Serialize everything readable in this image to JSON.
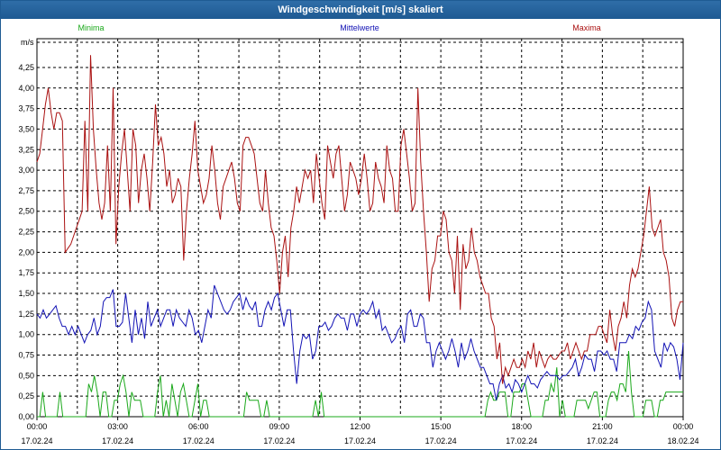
{
  "window": {
    "title": "Windgeschwindigkeit [m/s] skaliert"
  },
  "chart_data": {
    "type": "line",
    "title": "Windgeschwindigkeit [m/s] skaliert",
    "ylabel": "m/s",
    "xlabel": "",
    "ylim": [
      0,
      4.5
    ],
    "xlim_hours": [
      0,
      24
    ],
    "grid": true,
    "y_ticks": [
      "0,00",
      "0,25",
      "0,50",
      "0,75",
      "1,00",
      "1,25",
      "1,50",
      "1,75",
      "2,00",
      "2,25",
      "2,50",
      "2,75",
      "3,00",
      "3,25",
      "3,50",
      "3,75",
      "4,00",
      "4,25"
    ],
    "x_ticks": [
      {
        "time": "00:00",
        "date": "17.02.24"
      },
      {
        "time": "03:00",
        "date": "17.02.24"
      },
      {
        "time": "06:00",
        "date": "17.02.24"
      },
      {
        "time": "09:00",
        "date": "17.02.24"
      },
      {
        "time": "12:00",
        "date": "17.02.24"
      },
      {
        "time": "15:00",
        "date": "17.02.24"
      },
      {
        "time": "18:00",
        "date": "17.02.24"
      },
      {
        "time": "21:00",
        "date": "17.02.24"
      },
      {
        "time": "00:00",
        "date": "18.02.24"
      }
    ],
    "series": [
      {
        "name": "Minima",
        "color": "#1aa81a",
        "values": [
          0,
          0,
          0.3,
          0,
          0,
          0,
          0,
          0,
          0.3,
          0,
          0,
          0,
          0,
          0,
          0,
          0,
          0,
          0,
          0.4,
          0.3,
          0.5,
          0.3,
          0,
          0.3,
          0.3,
          0,
          0,
          0.2,
          0.2,
          0.4,
          0.5,
          0.3,
          0,
          0.3,
          0.2,
          0.2,
          0.2,
          0,
          0,
          0,
          0,
          0,
          0.3,
          0.5,
          0,
          0.2,
          0,
          0.4,
          0.2,
          0,
          0.3,
          0.4,
          0.2,
          0,
          0,
          0.2,
          0.4,
          0,
          0.2,
          0.2,
          0,
          0,
          0,
          0,
          0,
          0,
          0,
          0,
          0,
          0,
          0,
          0,
          0,
          0.3,
          0.2,
          0.2,
          0.2,
          0.2,
          0,
          0,
          0.2,
          0,
          0,
          0,
          0,
          0,
          0,
          0,
          0,
          0,
          0,
          0,
          0,
          0,
          0,
          0,
          0,
          0.2,
          0,
          0.3,
          0,
          0,
          0,
          0,
          0,
          0,
          0,
          0,
          0,
          0,
          0,
          0,
          0,
          0,
          0,
          0,
          0,
          0,
          0,
          0,
          0,
          0,
          0,
          0,
          0,
          0,
          0,
          0,
          0,
          0,
          0,
          0,
          0,
          0,
          0,
          0,
          0,
          0,
          0,
          0,
          0,
          0,
          0,
          0,
          0,
          0,
          0,
          0,
          0,
          0,
          0,
          0,
          0,
          0,
          0,
          0,
          0,
          0.2,
          0.3,
          0.2,
          0.2,
          0.3,
          0.3,
          0.3,
          0,
          0,
          0.3,
          0.3,
          0.3,
          0.4,
          0.4,
          0.2,
          0,
          0,
          0,
          0,
          0,
          0.2,
          0.2,
          0.4,
          0.3,
          0.6,
          0,
          0.2,
          0,
          0,
          0,
          0,
          0.2,
          0.2,
          0.2,
          0.2,
          0.1,
          0.2,
          0.3,
          0.3,
          0,
          0,
          0,
          0.2,
          0.3,
          0.3,
          0.2,
          0.4,
          0.4,
          0.3,
          0.8,
          0.3,
          0,
          0,
          0,
          0,
          0.2,
          0.2,
          0.2,
          0,
          0,
          0.2,
          0.2,
          0.3,
          0.3,
          0.3,
          0.3,
          0.3,
          0.3,
          0.3
        ]
      },
      {
        "name": "Mittelwerte",
        "color": "#1313b5",
        "values": [
          1.25,
          1.2,
          1.3,
          1.2,
          1.25,
          1.3,
          1.35,
          1.2,
          1.1,
          1.1,
          1.0,
          1.1,
          1.0,
          1.1,
          1.0,
          0.9,
          1.0,
          1.05,
          1.2,
          1.0,
          1.1,
          1.4,
          1.45,
          1.45,
          1.55,
          1.1,
          1.1,
          1.15,
          1.5,
          1.2,
          0.9,
          1.3,
          1.0,
          1.2,
          0.95,
          1.4,
          1.1,
          1.2,
          1.3,
          1.1,
          1.2,
          1.3,
          1.3,
          1.1,
          1.3,
          1.2,
          1.15,
          1.1,
          1.3,
          1.2,
          1.0,
          1.05,
          0.9,
          1.1,
          1.3,
          1.2,
          1.6,
          1.5,
          1.4,
          1.3,
          1.25,
          1.3,
          1.4,
          1.45,
          1.5,
          1.3,
          1.45,
          1.35,
          1.3,
          1.4,
          1.1,
          1.1,
          1.3,
          1.4,
          1.3,
          1.45,
          1.5,
          1.3,
          1.1,
          1.3,
          1.3,
          0.8,
          0.4,
          0.8,
          1.0,
          0.95,
          1.0,
          0.7,
          0.8,
          1.1,
          1.1,
          1.15,
          1.05,
          1.1,
          1.2,
          1.25,
          1.2,
          1.2,
          1.05,
          1.25,
          1.25,
          1.1,
          1.25,
          1.3,
          1.25,
          1.3,
          1.4,
          1.2,
          1.3,
          1.05,
          1.1,
          1.0,
          0.9,
          0.95,
          1.05,
          1.1,
          0.9,
          1.25,
          1.3,
          1.1,
          1.1,
          1.25,
          1.2,
          0.9,
          0.9,
          0.6,
          0.8,
          0.9,
          0.8,
          0.7,
          0.8,
          0.95,
          0.8,
          0.6,
          0.9,
          0.7,
          0.8,
          0.95,
          0.8,
          0.7,
          0.6,
          0.6,
          0.5,
          0.4,
          0.4,
          0.2,
          0.4,
          0.5,
          0.35,
          0.4,
          0.3,
          0.45,
          0.4,
          0.3,
          0.4,
          0.5,
          0.4,
          0.4,
          0.35,
          0.45,
          0.5,
          0.55,
          0.5,
          0.5,
          0.5,
          0.45,
          0.5,
          0.5,
          0.55,
          0.6,
          0.7,
          0.5,
          0.6,
          0.75,
          0.7,
          0.7,
          0.55,
          0.8,
          0.8,
          0.75,
          0.8,
          0.7,
          0.7,
          0.55,
          0.9,
          0.9,
          0.9,
          1.0,
          0.95,
          1.1,
          1.05,
          1.15,
          1.2,
          1.4,
          1.3,
          0.8,
          0.7,
          0.6,
          0.9,
          0.8,
          0.9,
          0.85,
          0.7,
          0.45,
          0.9
        ]
      },
      {
        "name": "Maxima",
        "color": "#aa1111",
        "values": [
          3.1,
          3.2,
          3.5,
          3.8,
          4.0,
          3.7,
          3.5,
          3.7,
          3.7,
          3.6,
          2.0,
          2.05,
          2.1,
          2.2,
          2.3,
          2.4,
          2.5,
          3.6,
          2.5,
          4.4,
          3.5,
          3.0,
          2.6,
          2.4,
          2.6,
          3.3,
          2.5,
          4.0,
          2.1,
          2.8,
          3.2,
          3.5,
          3.0,
          2.5,
          3.5,
          3.3,
          2.6,
          3.0,
          3.2,
          2.9,
          2.5,
          3.1,
          3.8,
          3.3,
          3.4,
          3.2,
          2.8,
          3.0,
          2.6,
          2.7,
          2.9,
          2.8,
          1.9,
          2.5,
          2.9,
          3.2,
          3.6,
          3.0,
          2.8,
          2.6,
          2.7,
          2.9,
          3.3,
          3.0,
          2.6,
          2.4,
          2.8,
          2.9,
          3.0,
          3.1,
          2.9,
          2.6,
          2.5,
          3.3,
          3.4,
          3.4,
          3.3,
          3.2,
          2.9,
          2.6,
          2.5,
          3.0,
          2.6,
          2.3,
          2.2,
          1.9,
          1.5,
          2.0,
          2.2,
          1.7,
          2.3,
          2.5,
          2.8,
          2.6,
          2.8,
          3.0,
          2.9,
          3.0,
          2.6,
          3.2,
          2.9,
          2.6,
          2.4,
          3.3,
          3.1,
          2.9,
          3.2,
          3.3,
          2.9,
          2.5,
          2.7,
          3.1,
          3.0,
          2.9,
          2.7,
          2.9,
          3.2,
          2.9,
          2.5,
          2.6,
          3.1,
          2.9,
          2.8,
          2.6,
          3.3,
          3.0,
          2.9,
          2.5,
          2.5,
          3.3,
          3.5,
          3.2,
          2.9,
          2.5,
          2.6,
          4.0,
          3.1,
          2.5,
          2.0,
          1.4,
          1.8,
          1.9,
          2.2,
          2.2,
          2.5,
          2.4,
          2.0,
          1.9,
          1.5,
          2.2,
          1.3,
          2.1,
          1.8,
          1.9,
          2.3,
          2.0,
          1.9,
          1.7,
          1.6,
          1.5,
          1.5,
          1.2,
          1.1,
          0.7,
          0.9,
          0.4,
          0.6,
          0.5,
          0.6,
          0.7,
          0.6,
          0.6,
          0.7,
          0.6,
          0.8,
          0.7,
          0.9,
          0.6,
          0.8,
          0.7,
          0.6,
          0.7,
          0.75,
          0.7,
          0.7,
          0.75,
          0.8,
          0.8,
          0.9,
          0.7,
          0.8,
          0.9,
          0.8,
          0.7,
          0.8,
          0.8,
          1.0,
          1.0,
          1.0,
          1.1,
          1.1,
          1.0,
          0.9,
          1.3,
          1.0,
          0.8,
          1.1,
          1.2,
          1.4,
          1.2,
          1.6,
          1.8,
          1.7,
          1.8,
          2.0,
          2.2,
          2.5,
          2.8,
          2.3,
          2.2,
          2.3,
          2.4,
          2.0,
          1.9,
          1.7,
          1.2,
          1.1,
          1.3,
          1.4,
          1.4
        ]
      }
    ]
  }
}
